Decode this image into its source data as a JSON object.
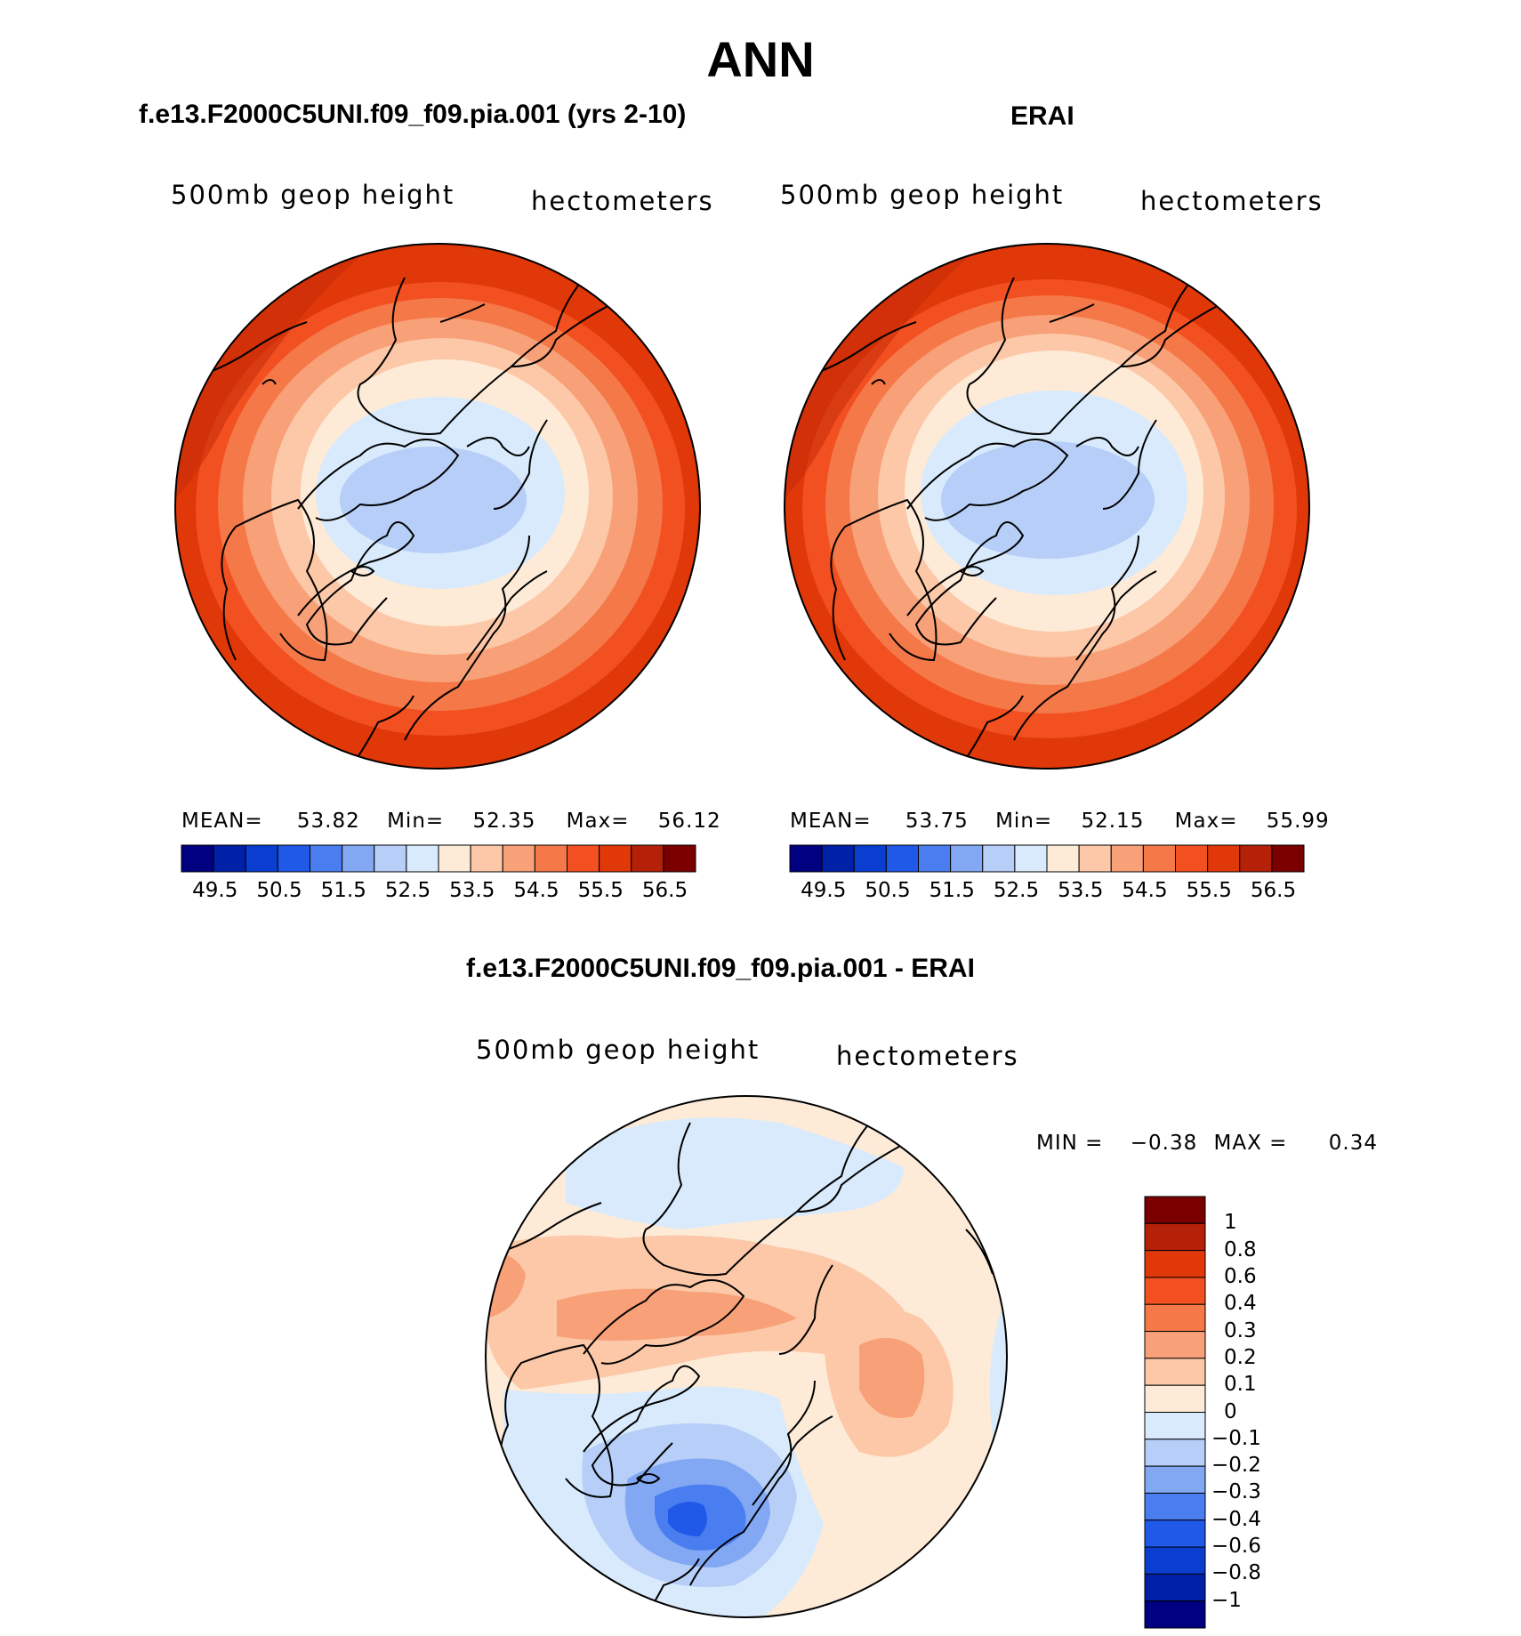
{
  "figure": {
    "season": "ANN"
  },
  "panels": [
    {
      "heading": "f.e13.F2000C5UNI.f09_f09.pia.001 (yrs 2-10)",
      "variable": "500mb geop height",
      "units": "hectometers",
      "stats": {
        "mean_label": "MEAN=",
        "mean": "53.82",
        "min_label": "Min=",
        "min": "52.35",
        "max_label": "Max=",
        "max": "56.12"
      }
    },
    {
      "heading": "ERAI",
      "variable": "500mb geop height",
      "units": "hectometers",
      "stats": {
        "mean_label": "MEAN=",
        "mean": "53.75",
        "min_label": "Min=",
        "min": "52.15",
        "max_label": "Max=",
        "max": "55.99"
      }
    }
  ],
  "difference": {
    "heading": "f.e13.F2000C5UNI.f09_f09.pia.001 - ERAI",
    "variable": "500mb geop height",
    "units": "hectometers",
    "min_label": "MIN =",
    "min": "−0.38",
    "max_label": "MAX =",
    "max": "0.34"
  },
  "chart_data": [
    {
      "type": "heatmap",
      "title": "f.e13.F2000C5UNI.f09_f09.pia.001 (yrs 2-10)",
      "projection": "north polar stereographic",
      "variable": "500mb geop height",
      "units": "hectometers",
      "mean": 53.82,
      "min": 52.35,
      "max": 56.12,
      "contour_levels": [
        49.5,
        50,
        50.5,
        51,
        51.5,
        52,
        52.5,
        53,
        53.5,
        54,
        54.5,
        55,
        55.5,
        56,
        56.5
      ],
      "colorbar_tick_labels": [
        "49.5",
        "50.5",
        "51.5",
        "52.5",
        "53.5",
        "54.5",
        "55.5",
        "56.5"
      ],
      "colors": [
        "#000080",
        "#0020a8",
        "#0a3ed0",
        "#2058e8",
        "#4a7ef0",
        "#82a8f4",
        "#b6cef8",
        "#d8eafc",
        "#fdebd8",
        "#fcc8a8",
        "#f8a078",
        "#f57848",
        "#f25020",
        "#e03808",
        "#b42008",
        "#7a0000"
      ]
    },
    {
      "type": "heatmap",
      "title": "ERAI",
      "projection": "north polar stereographic",
      "variable": "500mb geop height",
      "units": "hectometers",
      "mean": 53.75,
      "min": 52.15,
      "max": 55.99,
      "contour_levels": [
        49.5,
        50,
        50.5,
        51,
        51.5,
        52,
        52.5,
        53,
        53.5,
        54,
        54.5,
        55,
        55.5,
        56,
        56.5
      ],
      "colorbar_tick_labels": [
        "49.5",
        "50.5",
        "51.5",
        "52.5",
        "53.5",
        "54.5",
        "55.5",
        "56.5"
      ],
      "colors": [
        "#000080",
        "#0020a8",
        "#0a3ed0",
        "#2058e8",
        "#4a7ef0",
        "#82a8f4",
        "#b6cef8",
        "#d8eafc",
        "#fdebd8",
        "#fcc8a8",
        "#f8a078",
        "#f57848",
        "#f25020",
        "#e03808",
        "#b42008",
        "#7a0000"
      ]
    },
    {
      "type": "heatmap",
      "title": "f.e13.F2000C5UNI.f09_f09.pia.001 - ERAI",
      "projection": "north polar stereographic",
      "variable": "500mb geop height",
      "units": "hectometers",
      "min": -0.38,
      "max": 0.34,
      "contour_levels": [
        -1,
        -0.8,
        -0.6,
        -0.4,
        -0.3,
        -0.2,
        -0.1,
        0,
        0.1,
        0.2,
        0.3,
        0.4,
        0.6,
        0.8,
        1
      ],
      "colorbar_tick_labels": [
        "1",
        "0.8",
        "0.6",
        "0.4",
        "0.3",
        "0.2",
        "0.1",
        "0",
        "−0.1",
        "−0.2",
        "−0.3",
        "−0.4",
        "−0.6",
        "−0.8",
        "−1"
      ],
      "colors": [
        "#000080",
        "#0020a8",
        "#0a3ed0",
        "#2058e8",
        "#4a7ef0",
        "#82a8f4",
        "#b6cef8",
        "#d8eafc",
        "#fdebd8",
        "#fcc8a8",
        "#f8a078",
        "#f57848",
        "#f25020",
        "#e03808",
        "#b42008",
        "#7a0000"
      ]
    }
  ]
}
